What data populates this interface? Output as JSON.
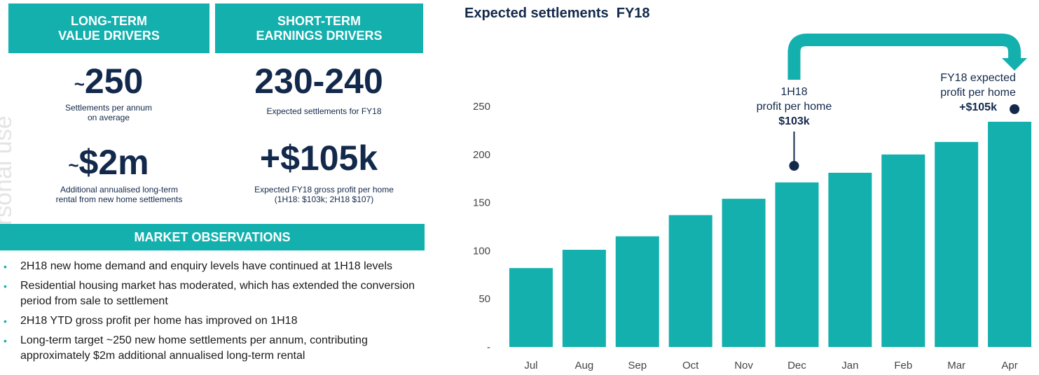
{
  "watermark": "personal use",
  "drivers": {
    "long_term": {
      "heading_line1": "LONG-TERM",
      "heading_line2": "VALUE DRIVERS",
      "kpi1": {
        "prefix": "~",
        "value": "250",
        "caption": "Settlements per annum\non average"
      },
      "kpi2": {
        "prefix": "~",
        "value": "$2m",
        "caption": "Additional annualised long-term\nrental from new home settlements"
      }
    },
    "short_term": {
      "heading_line1": "SHORT-TERM",
      "heading_line2": "EARNINGS DRIVERS",
      "kpi1": {
        "value": "230-240",
        "caption": "Expected settlements for FY18"
      },
      "kpi2": {
        "value": "+$105k",
        "caption": "Expected FY18 gross profit per home\n(1H18: $103k; 2H18 $107)"
      }
    }
  },
  "market": {
    "heading": "MARKET OBSERVATIONS",
    "bullets": [
      "2H18 new home demand and enquiry levels have continued at 1H18 levels",
      "Residential housing market has moderated, which has extended the conversion period from sale to settlement",
      "2H18 YTD gross profit per home has improved on 1H18",
      "Long-term target ~250 new home settlements per annum, contributing approximately $2m additional annualised long-term rental"
    ]
  },
  "colors": {
    "teal": "#13b0ae",
    "navy": "#13294b"
  },
  "chart_data": {
    "type": "bar",
    "title": "Expected settlements  FY18",
    "categories": [
      "Jul",
      "Aug",
      "Sep",
      "Oct",
      "Nov",
      "Dec",
      "Jan",
      "Feb",
      "Mar",
      "Apr"
    ],
    "values": [
      82,
      101,
      115,
      137,
      154,
      171,
      181,
      200,
      213,
      234
    ],
    "ylim": [
      0,
      250
    ],
    "yticks": [
      0,
      50,
      100,
      150,
      200,
      250
    ],
    "ytick_labels": [
      "-",
      "50",
      "100",
      "150",
      "200",
      "250"
    ],
    "grid": false,
    "annotations": [
      {
        "category": "Dec",
        "lines": [
          "1H18",
          "profit per home",
          "$103k"
        ]
      },
      {
        "category": "Apr",
        "lines": [
          "FY18 expected",
          "profit per home",
          "+$105k"
        ]
      }
    ],
    "arrow": {
      "from": "Dec",
      "to": "Apr"
    }
  }
}
